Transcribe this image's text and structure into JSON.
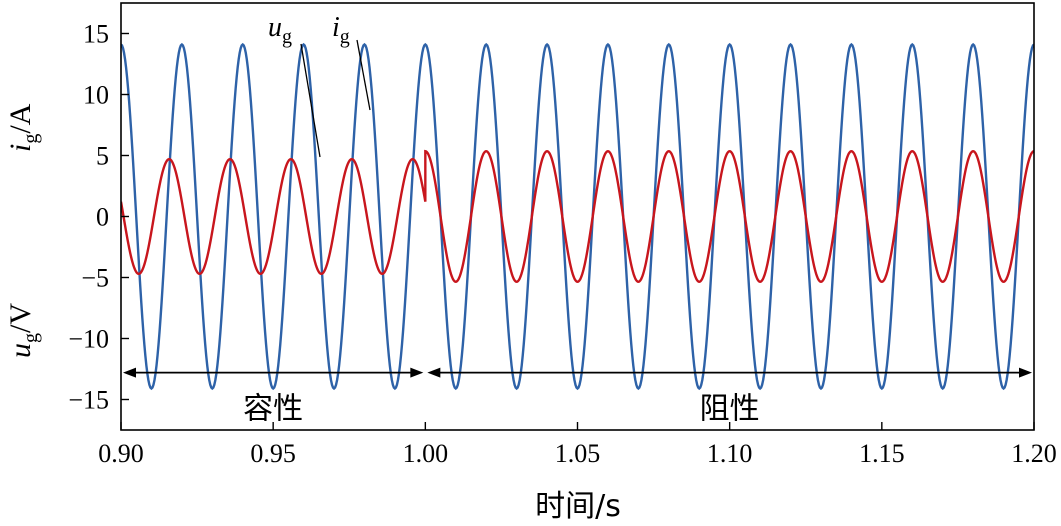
{
  "chart_data": {
    "type": "line",
    "xlabel": "时间/s",
    "ylabel_top": "i_g/A",
    "ylabel_bottom": "u_g/V",
    "xlim": [
      0.9,
      1.2
    ],
    "ylim": [
      -17.5,
      17.5
    ],
    "x_ticks": [
      "0.90",
      "0.95",
      "1.00",
      "1.05",
      "1.10",
      "1.15",
      "1.20"
    ],
    "y_ticks": [
      "15",
      "10",
      "5",
      "0",
      "−5",
      "−10",
      "−15"
    ],
    "grid": false,
    "series": [
      {
        "name": "u_g",
        "color": "#2e62a8",
        "frequency_hz": 50,
        "amplitude": 14.1,
        "phase_deg": 90,
        "x_start": 0.9,
        "x_end": 1.2
      },
      {
        "name": "i_g",
        "color": "#c8161d",
        "frequency_hz": 50,
        "segments": [
          {
            "x_start": 0.9,
            "x_end": 1.0,
            "amplitude": 4.7,
            "phase_deg": 165
          },
          {
            "x_start": 1.0,
            "x_end": 1.2,
            "amplitude": 5.35,
            "phase_deg": 90
          }
        ]
      }
    ],
    "annotations": {
      "ug_label": {
        "base": "u",
        "sub": "g"
      },
      "ig_label": {
        "base": "i",
        "sub": "g"
      },
      "regions": [
        {
          "label": "容性",
          "x_start": 0.9,
          "x_end": 1.0,
          "y": -12.8
        },
        {
          "label": "阻性",
          "x_start": 1.0,
          "x_end": 1.2,
          "y": -12.8
        }
      ]
    }
  }
}
